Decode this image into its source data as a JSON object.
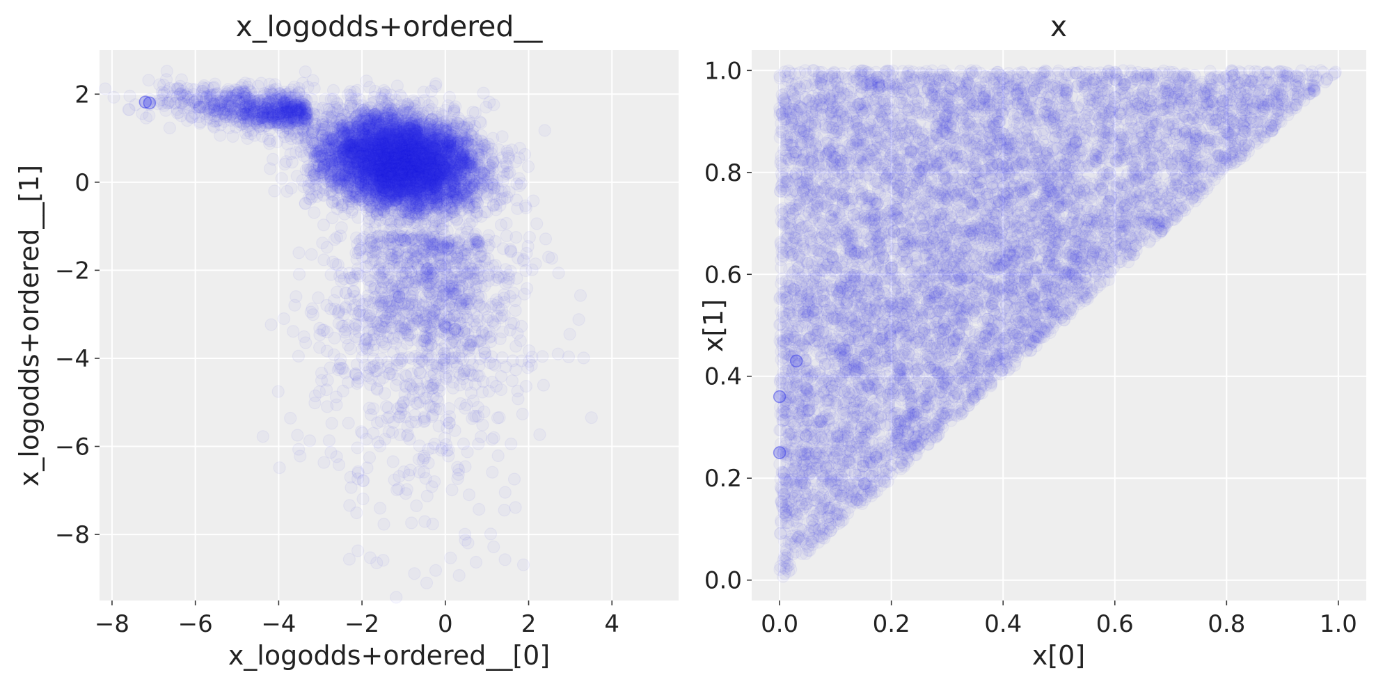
{
  "colors": {
    "background": "#ffffff",
    "panel": "#eeeeee",
    "grid": "#ffffff",
    "marker": "#2a2eec",
    "text": "#222222"
  },
  "chart_data": [
    {
      "type": "scatter",
      "title": "x_logodds+ordered__",
      "xlabel": "x_logodds+ordered__[0]",
      "ylabel": "x_logodds+ordered__[1]",
      "xlim": [
        -8.3,
        5.6
      ],
      "ylim": [
        -9.5,
        3.0
      ],
      "xticks": [
        -8,
        -6,
        -4,
        -2,
        0,
        2,
        4
      ],
      "yticks": [
        -8,
        -6,
        -4,
        -2,
        0,
        2
      ],
      "grid": true,
      "marker": "hollow-circle",
      "alpha": 0.04,
      "n_points": 8000,
      "distribution": "dense cloud centered near (-1, 0.5) with a long tail toward (-7.5, 1.9) and sparse points down to y = -9",
      "highlighted_points": [
        {
          "x": -7.2,
          "y": 1.82
        },
        {
          "x": -7.1,
          "y": 1.8
        }
      ]
    },
    {
      "type": "scatter",
      "title": "x",
      "xlabel": "x[0]",
      "ylabel": "x[1]",
      "xlim": [
        -0.05,
        1.05
      ],
      "ylim": [
        -0.04,
        1.04
      ],
      "xticks": [
        0.0,
        0.2,
        0.4,
        0.6,
        0.8,
        1.0
      ],
      "yticks": [
        0.0,
        0.2,
        0.4,
        0.6,
        0.8,
        1.0
      ],
      "grid": true,
      "marker": "hollow-circle",
      "alpha": 0.04,
      "n_points": 8000,
      "distribution": "uniform over the triangle 0 <= x[0] <= x[1] <= 1",
      "highlighted_points": [
        {
          "x": 0.0,
          "y": 0.36
        },
        {
          "x": 0.0,
          "y": 0.25
        },
        {
          "x": 0.03,
          "y": 0.43
        }
      ]
    }
  ]
}
